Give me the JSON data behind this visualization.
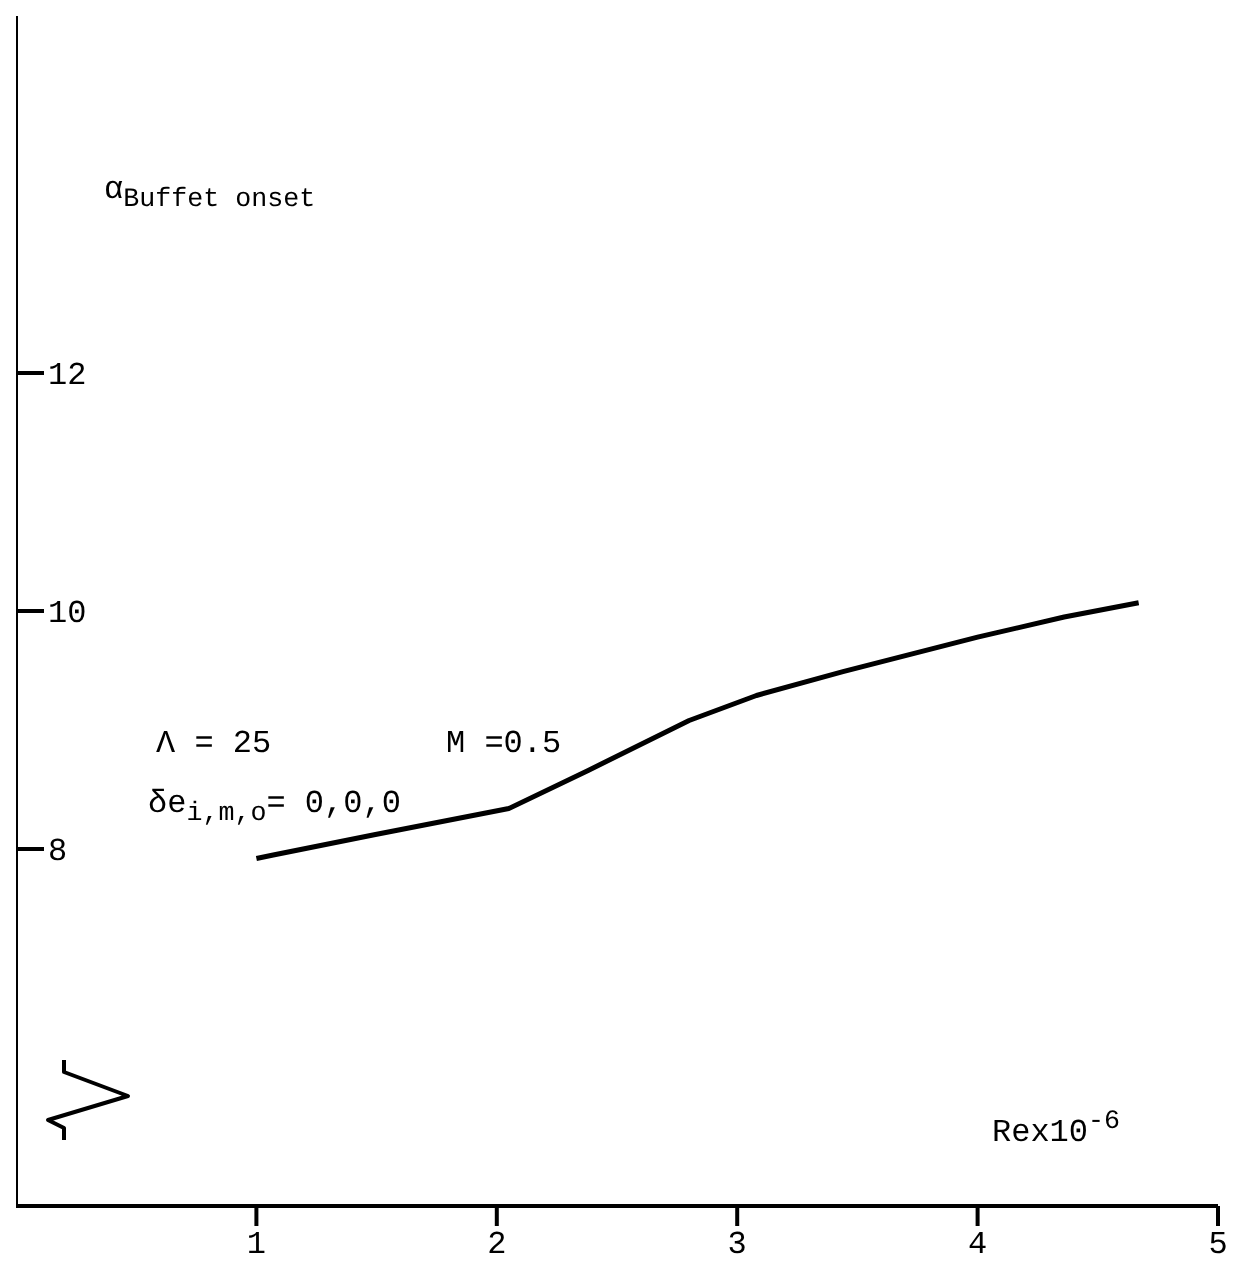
{
  "chart_data": {
    "type": "line",
    "xlabel": "Rex10$^{-6}$",
    "ylabel": "α$_{Buffet onset}$",
    "annotations": [
      "Λ = 25",
      "M =0.5",
      "δe$_{i,m,o}$= 0,0,0"
    ],
    "xlim": [
      0,
      5
    ],
    "xticks": [
      1,
      2,
      3,
      4,
      5
    ],
    "ylim": [
      5,
      15
    ],
    "yticks": [
      8,
      10,
      12
    ],
    "grid": false,
    "marker": "none",
    "line_style": "solid",
    "series": [
      {
        "color": "#000000",
        "x": [
          1,
          1.07,
          1.49,
          2.05,
          2.38,
          2.8,
          3.08,
          3.44,
          4.0,
          4.36,
          4.67
        ],
        "values": [
          7.92,
          7.95,
          8.12,
          8.34,
          8.66,
          9.08,
          9.29,
          9.49,
          9.78,
          9.95,
          10.07
        ]
      }
    ]
  }
}
